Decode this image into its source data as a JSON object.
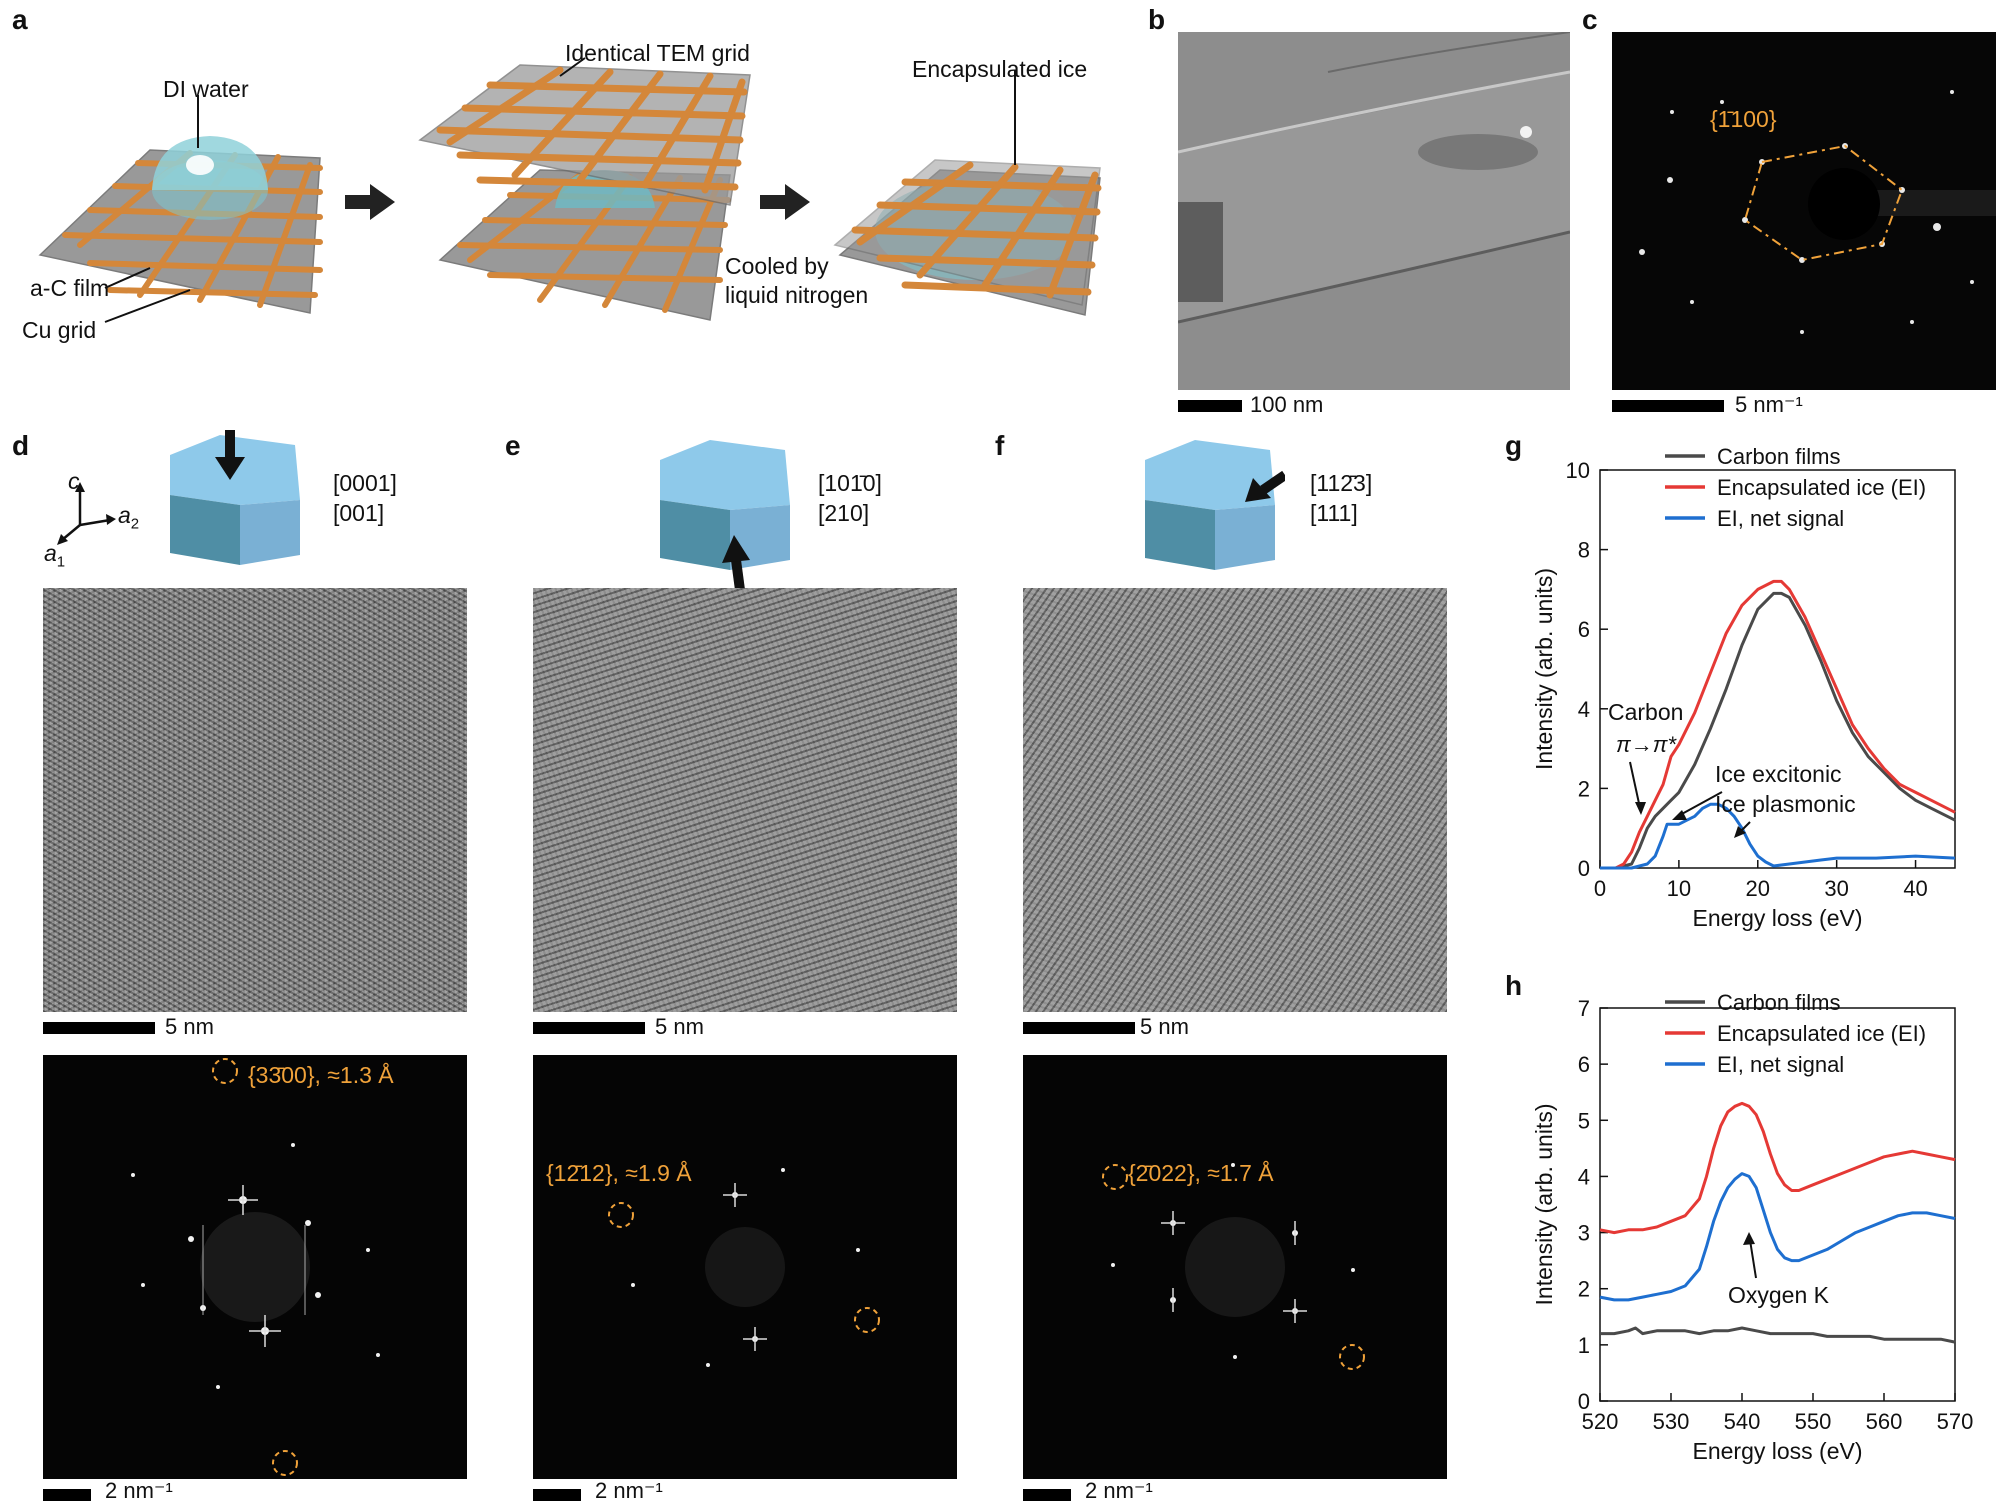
{
  "panels": {
    "a": {
      "label": "a",
      "texts": {
        "di_water": "DI water",
        "tem_grid": "Identical TEM grid",
        "encapsulated_ice": "Encapsulated ice",
        "ac_film": "a-C film",
        "cu_grid": "Cu grid",
        "cooled_line1": "Cooled by",
        "cooled_line2": "liquid nitrogen"
      }
    },
    "b": {
      "label": "b",
      "scalebar": "100 nm"
    },
    "c": {
      "label": "c",
      "scalebar": "5 nm⁻¹",
      "annotation": "{1̄100}"
    },
    "d": {
      "label": "d",
      "axis_c": "c",
      "axis_a2": "a",
      "axis_a2_sub": "2",
      "axis_a1": "a",
      "axis_a1_sub": "1",
      "zone1": "[0001]",
      "zone2": "[001]",
      "scalebar_real": "5 nm",
      "scalebar_fft": "2 nm⁻¹",
      "fft_annotation": "{33̄00}, ≈1.3 Å"
    },
    "e": {
      "label": "e",
      "zone1": "[101̄0]",
      "zone2": "[210]",
      "scalebar_real": "5 nm",
      "scalebar_fft": "2 nm⁻¹",
      "fft_annotation": "{12̄12}, ≈1.9 Å"
    },
    "f": {
      "label": "f",
      "zone1": "[112̄3]",
      "zone2": "[111]",
      "scalebar_real": "5 nm",
      "scalebar_fft": "2 nm⁻¹",
      "fft_annotation": "{2̄022}, ≈1.7 Å"
    },
    "g": {
      "label": "g"
    },
    "h": {
      "label": "h"
    }
  },
  "colors": {
    "carbon": "#4a4a4a",
    "ice": "#e53935",
    "net": "#1e6fd0",
    "annotation": "#f0a23a",
    "copper": "#d4873a",
    "film": "#8a8a8a",
    "water": "#7cc6d0"
  },
  "chart_data": [
    {
      "type": "line",
      "panel": "g",
      "xlabel": "Energy loss (eV)",
      "ylabel": "Intensity (arb. units)",
      "xlim": [
        0,
        45
      ],
      "ylim": [
        0,
        10
      ],
      "xticks": [
        0,
        10,
        20,
        30,
        40
      ],
      "yticks": [
        0,
        2,
        4,
        6,
        8,
        10
      ],
      "legend_position": "top-right",
      "annotations": [
        "Carbon",
        "π→π*",
        "Ice excitonic",
        "Ice plasmonic"
      ],
      "series": [
        {
          "name": "Carbon films",
          "x": [
            0,
            2,
            4,
            5,
            6,
            7,
            8,
            9,
            10,
            12,
            14,
            16,
            18,
            20,
            22,
            23,
            24,
            26,
            28,
            30,
            32,
            34,
            36,
            38,
            40,
            42,
            45
          ],
          "y": [
            0,
            0,
            0.1,
            0.5,
            1.0,
            1.3,
            1.5,
            1.7,
            1.9,
            2.6,
            3.5,
            4.5,
            5.6,
            6.5,
            6.9,
            6.9,
            6.8,
            6.1,
            5.2,
            4.2,
            3.4,
            2.8,
            2.4,
            2.0,
            1.7,
            1.5,
            1.2
          ]
        },
        {
          "name": "Encapsulated ice (EI)",
          "x": [
            0,
            2,
            3,
            4,
            5,
            6,
            7,
            8,
            9,
            10,
            12,
            14,
            16,
            18,
            20,
            22,
            23,
            24,
            26,
            28,
            30,
            32,
            34,
            36,
            38,
            40,
            42,
            45
          ],
          "y": [
            0,
            0,
            0.1,
            0.4,
            0.9,
            1.3,
            1.7,
            2.1,
            2.8,
            3.1,
            3.9,
            4.9,
            5.9,
            6.6,
            7.0,
            7.2,
            7.2,
            7.0,
            6.3,
            5.4,
            4.5,
            3.6,
            3.0,
            2.5,
            2.1,
            1.9,
            1.7,
            1.4
          ]
        },
        {
          "name": "EI, net signal",
          "x": [
            0,
            4,
            6,
            7,
            8,
            8.5,
            9,
            10,
            11,
            12,
            13,
            14,
            15,
            16,
            17,
            18,
            19,
            20,
            21,
            22,
            24,
            26,
            28,
            30,
            35,
            40,
            45
          ],
          "y": [
            0,
            0,
            0.1,
            0.3,
            0.8,
            1.1,
            1.1,
            1.1,
            1.2,
            1.3,
            1.5,
            1.6,
            1.6,
            1.5,
            1.3,
            1.0,
            0.6,
            0.3,
            0.15,
            0.05,
            0.1,
            0.15,
            0.2,
            0.25,
            0.25,
            0.3,
            0.25
          ]
        }
      ]
    },
    {
      "type": "line",
      "panel": "h",
      "xlabel": "Energy loss (eV)",
      "ylabel": "Intensity (arb. units)",
      "xlim": [
        520,
        570
      ],
      "ylim": [
        0,
        7
      ],
      "xticks": [
        520,
        530,
        540,
        550,
        560,
        570
      ],
      "yticks": [
        0,
        1,
        2,
        3,
        4,
        5,
        6,
        7
      ],
      "legend_position": "top-right",
      "annotations": [
        "Oxygen K"
      ],
      "series": [
        {
          "name": "Carbon films",
          "x": [
            520,
            522,
            524,
            525,
            526,
            528,
            530,
            532,
            534,
            536,
            538,
            540,
            542,
            544,
            546,
            548,
            550,
            552,
            555,
            558,
            560,
            562,
            565,
            568,
            570
          ],
          "y": [
            1.2,
            1.2,
            1.25,
            1.3,
            1.2,
            1.25,
            1.25,
            1.25,
            1.2,
            1.25,
            1.25,
            1.3,
            1.25,
            1.2,
            1.2,
            1.2,
            1.2,
            1.15,
            1.15,
            1.15,
            1.1,
            1.1,
            1.1,
            1.1,
            1.05
          ]
        },
        {
          "name": "Encapsulated ice (EI)",
          "x": [
            520,
            522,
            524,
            526,
            528,
            530,
            532,
            534,
            535,
            536,
            537,
            538,
            539,
            540,
            541,
            542,
            543,
            544,
            545,
            546,
            547,
            548,
            550,
            552,
            554,
            556,
            558,
            560,
            562,
            564,
            566,
            568,
            570
          ],
          "y": [
            3.05,
            3.0,
            3.05,
            3.05,
            3.1,
            3.2,
            3.3,
            3.6,
            4.0,
            4.5,
            4.9,
            5.15,
            5.25,
            5.3,
            5.25,
            5.1,
            4.8,
            4.4,
            4.05,
            3.85,
            3.75,
            3.75,
            3.85,
            3.95,
            4.05,
            4.15,
            4.25,
            4.35,
            4.4,
            4.45,
            4.4,
            4.35,
            4.3
          ]
        },
        {
          "name": "EI, net signal",
          "x": [
            520,
            522,
            524,
            526,
            528,
            530,
            532,
            534,
            535,
            536,
            537,
            538,
            539,
            540,
            541,
            542,
            543,
            544,
            545,
            546,
            547,
            548,
            550,
            552,
            554,
            556,
            558,
            560,
            562,
            564,
            566,
            568,
            570
          ],
          "y": [
            1.85,
            1.8,
            1.8,
            1.85,
            1.9,
            1.95,
            2.05,
            2.35,
            2.75,
            3.2,
            3.55,
            3.8,
            3.95,
            4.05,
            4.0,
            3.8,
            3.4,
            3.0,
            2.7,
            2.55,
            2.5,
            2.5,
            2.6,
            2.7,
            2.85,
            3.0,
            3.1,
            3.2,
            3.3,
            3.35,
            3.35,
            3.3,
            3.25
          ]
        }
      ]
    }
  ]
}
